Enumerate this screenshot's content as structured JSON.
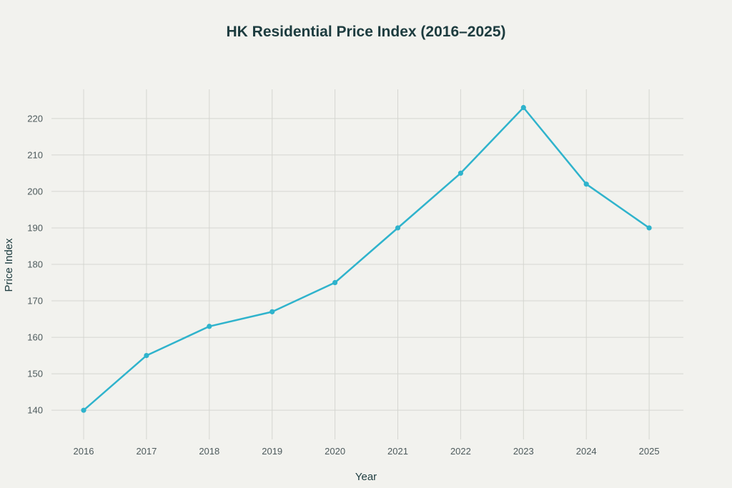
{
  "chart_data": {
    "type": "line",
    "title": "HK Residential Price Index (2016–2025)",
    "xlabel": "Year",
    "ylabel": "Price Index",
    "x": [
      "2016",
      "2017",
      "2018",
      "2019",
      "2020",
      "2021",
      "2022",
      "2023",
      "2024",
      "2025"
    ],
    "y_ticks": [
      140,
      150,
      160,
      170,
      180,
      190,
      200,
      210,
      220
    ],
    "ylim": [
      132,
      228
    ],
    "series": [
      {
        "values": [
          140,
          155,
          163,
          167,
          175,
          190,
          205,
          223,
          202,
          190
        ],
        "color": "#2fb3cc"
      }
    ],
    "grid": true,
    "legend": "none"
  },
  "colors": {
    "background": "#f2f2ee",
    "grid": "#d5d6d1",
    "title": "#1d3c3f",
    "tick_text": "#4d5a5c"
  }
}
